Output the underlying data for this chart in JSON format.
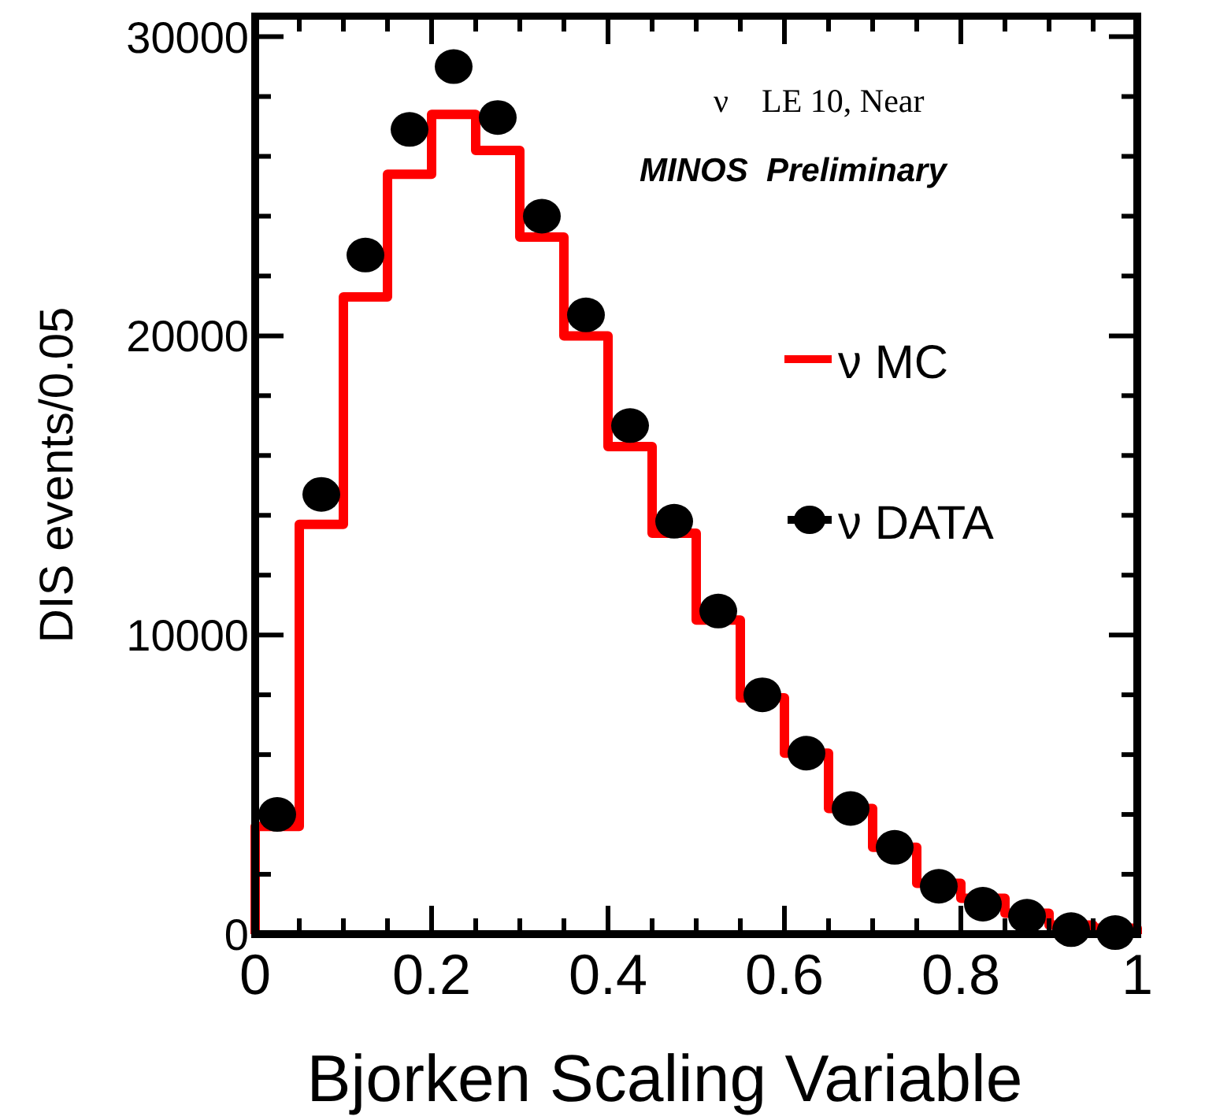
{
  "chart_data": {
    "type": "histogram",
    "xlabel": "Bjorken Scaling Variable",
    "ylabel": "DIS events/0.05",
    "annotations": [
      "ν    LE 10, Near",
      "MINOS  Preliminary"
    ],
    "bins": [
      0,
      0.05,
      0.1,
      0.15,
      0.2,
      0.25,
      0.3,
      0.35,
      0.4,
      0.45,
      0.5,
      0.55,
      0.6,
      0.65,
      0.7,
      0.75,
      0.8,
      0.85,
      0.9,
      0.95,
      1
    ],
    "series": [
      {
        "name": "ν MC",
        "color": "#ff0000",
        "values": [
          3600,
          13700,
          21300,
          25400,
          27400,
          26200,
          23300,
          20000,
          16300,
          13400,
          10500,
          7900,
          6050,
          4200,
          2900,
          1700,
          1200,
          700,
          300,
          200
        ]
      },
      {
        "name": "ν DATA",
        "type": "scatter",
        "color": "#000000",
        "x": [
          0.025,
          0.075,
          0.125,
          0.175,
          0.225,
          0.275,
          0.325,
          0.375,
          0.425,
          0.475,
          0.525,
          0.575,
          0.625,
          0.675,
          0.725,
          0.775,
          0.825,
          0.875,
          0.925,
          0.975
        ],
        "values": [
          4000,
          14700,
          22700,
          26900,
          29000,
          27300,
          24000,
          20700,
          17000,
          13800,
          10800,
          8000,
          6050,
          4200,
          2900,
          1600,
          1000,
          600,
          150,
          50
        ]
      }
    ],
    "xlim": [
      0,
      1
    ],
    "ylim": [
      0,
      30700
    ],
    "xticks": [
      0,
      {
        "value": 0.05,
        "label": null
      },
      {
        "value": 0.1,
        "label": null
      },
      {
        "value": 0.15,
        "label": null
      },
      0.2,
      {
        "value": 0.25,
        "label": null
      },
      {
        "value": 0.3,
        "label": null
      },
      {
        "value": 0.35,
        "label": null
      },
      0.4,
      {
        "value": 0.45,
        "label": null
      },
      {
        "value": 0.5,
        "label": null
      },
      {
        "value": 0.55,
        "label": null
      },
      0.6,
      {
        "value": 0.65,
        "label": null
      },
      {
        "value": 0.7,
        "label": null
      },
      {
        "value": 0.75,
        "label": null
      },
      0.8,
      {
        "value": 0.85,
        "label": null
      },
      {
        "value": 0.9,
        "label": null
      },
      {
        "value": 0.95,
        "label": null
      },
      1
    ],
    "yticks": [
      0,
      {
        "value": 2000,
        "label": null
      },
      {
        "value": 4000,
        "label": null
      },
      {
        "value": 6000,
        "label": null
      },
      {
        "value": 8000,
        "label": null
      },
      10000,
      {
        "value": 12000,
        "label": null
      },
      {
        "value": 14000,
        "label": null
      },
      {
        "value": 16000,
        "label": null
      },
      {
        "value": 18000,
        "label": null
      },
      20000,
      {
        "value": 22000,
        "label": null
      },
      {
        "value": 24000,
        "label": null
      },
      {
        "value": 26000,
        "label": null
      },
      {
        "value": 28000,
        "label": null
      },
      30000
    ],
    "legend": "right",
    "marker": "circle",
    "grid": false
  }
}
